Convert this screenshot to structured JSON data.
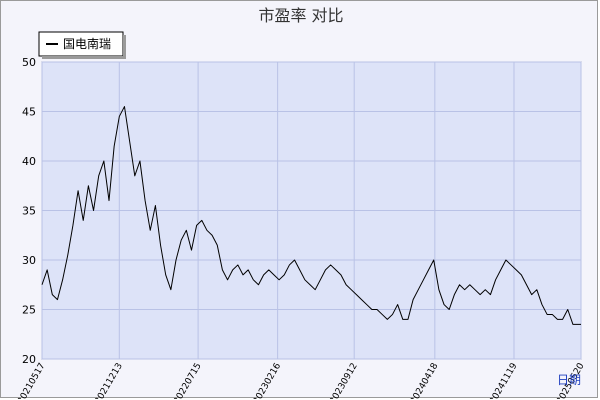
{
  "chart_data": {
    "type": "line",
    "title": "市盈率  对比",
    "xlabel": "日期",
    "ylabel": "",
    "ylim": [
      20,
      50
    ],
    "y_ticks": [
      20,
      25,
      30,
      35,
      40,
      45,
      50
    ],
    "x_range": [
      "2021-05-17",
      "2025-05-20"
    ],
    "x_ticks": [
      {
        "date": "2021-05-17",
        "label": "20210517"
      },
      {
        "date": "2021-12-13",
        "label": "20211213"
      },
      {
        "date": "2022-07-15",
        "label": "20220715"
      },
      {
        "date": "2023-02-16",
        "label": "20230216"
      },
      {
        "date": "2023-09-12",
        "label": "20230912"
      },
      {
        "date": "2024-04-18",
        "label": "20240418"
      },
      {
        "date": "2024-11-19",
        "label": "20241119"
      },
      {
        "date": "2025-05-20",
        "label": "20250520"
      }
    ],
    "grid": true,
    "legend": "top-left",
    "series": [
      {
        "name": "国电南瑞",
        "color": "#000000",
        "points": [
          [
            "2021-05-17",
            27.5
          ],
          [
            "2021-05-31",
            29.0
          ],
          [
            "2021-06-14",
            26.5
          ],
          [
            "2021-06-28",
            26.0
          ],
          [
            "2021-07-12",
            28.0
          ],
          [
            "2021-07-26",
            30.5
          ],
          [
            "2021-08-09",
            33.5
          ],
          [
            "2021-08-23",
            37.0
          ],
          [
            "2021-09-06",
            34.0
          ],
          [
            "2021-09-20",
            37.5
          ],
          [
            "2021-10-04",
            35.0
          ],
          [
            "2021-10-18",
            38.5
          ],
          [
            "2021-11-01",
            40.0
          ],
          [
            "2021-11-15",
            36.0
          ],
          [
            "2021-11-29",
            41.5
          ],
          [
            "2021-12-13",
            44.5
          ],
          [
            "2021-12-27",
            45.5
          ],
          [
            "2022-01-10",
            42.0
          ],
          [
            "2022-01-24",
            38.5
          ],
          [
            "2022-02-07",
            40.0
          ],
          [
            "2022-02-21",
            36.0
          ],
          [
            "2022-03-07",
            33.0
          ],
          [
            "2022-03-21",
            35.5
          ],
          [
            "2022-04-04",
            31.5
          ],
          [
            "2022-04-18",
            28.5
          ],
          [
            "2022-05-02",
            27.0
          ],
          [
            "2022-05-16",
            30.0
          ],
          [
            "2022-05-30",
            32.0
          ],
          [
            "2022-06-13",
            33.0
          ],
          [
            "2022-06-27",
            31.0
          ],
          [
            "2022-07-11",
            33.5
          ],
          [
            "2022-07-25",
            34.0
          ],
          [
            "2022-08-08",
            33.0
          ],
          [
            "2022-08-22",
            32.5
          ],
          [
            "2022-09-05",
            31.5
          ],
          [
            "2022-09-19",
            29.0
          ],
          [
            "2022-10-03",
            28.0
          ],
          [
            "2022-10-17",
            29.0
          ],
          [
            "2022-10-31",
            29.5
          ],
          [
            "2022-11-14",
            28.5
          ],
          [
            "2022-11-28",
            29.0
          ],
          [
            "2022-12-12",
            28.0
          ],
          [
            "2022-12-26",
            27.5
          ],
          [
            "2023-01-09",
            28.5
          ],
          [
            "2023-01-23",
            29.0
          ],
          [
            "2023-02-06",
            28.5
          ],
          [
            "2023-02-20",
            28.0
          ],
          [
            "2023-03-06",
            28.5
          ],
          [
            "2023-03-20",
            29.5
          ],
          [
            "2023-04-03",
            30.0
          ],
          [
            "2023-04-17",
            29.0
          ],
          [
            "2023-05-01",
            28.0
          ],
          [
            "2023-05-15",
            27.5
          ],
          [
            "2023-05-29",
            27.0
          ],
          [
            "2023-06-12",
            28.0
          ],
          [
            "2023-06-26",
            29.0
          ],
          [
            "2023-07-10",
            29.5
          ],
          [
            "2023-07-24",
            29.0
          ],
          [
            "2023-08-07",
            28.5
          ],
          [
            "2023-08-21",
            27.5
          ],
          [
            "2023-09-04",
            27.0
          ],
          [
            "2023-09-18",
            26.5
          ],
          [
            "2023-10-02",
            26.0
          ],
          [
            "2023-10-16",
            25.5
          ],
          [
            "2023-10-30",
            25.0
          ],
          [
            "2023-11-13",
            25.0
          ],
          [
            "2023-11-27",
            24.5
          ],
          [
            "2023-12-11",
            24.0
          ],
          [
            "2023-12-25",
            24.5
          ],
          [
            "2024-01-08",
            25.5
          ],
          [
            "2024-01-22",
            24.0
          ],
          [
            "2024-02-05",
            24.0
          ],
          [
            "2024-02-19",
            26.0
          ],
          [
            "2024-03-04",
            27.0
          ],
          [
            "2024-03-18",
            28.0
          ],
          [
            "2024-04-01",
            29.0
          ],
          [
            "2024-04-15",
            30.0
          ],
          [
            "2024-04-29",
            27.0
          ],
          [
            "2024-05-13",
            25.5
          ],
          [
            "2024-05-27",
            25.0
          ],
          [
            "2024-06-10",
            26.5
          ],
          [
            "2024-06-24",
            27.5
          ],
          [
            "2024-07-08",
            27.0
          ],
          [
            "2024-07-22",
            27.5
          ],
          [
            "2024-08-05",
            27.0
          ],
          [
            "2024-08-19",
            26.5
          ],
          [
            "2024-09-02",
            27.0
          ],
          [
            "2024-09-16",
            26.5
          ],
          [
            "2024-09-30",
            28.0
          ],
          [
            "2024-10-14",
            29.0
          ],
          [
            "2024-10-28",
            30.0
          ],
          [
            "2024-11-11",
            29.5
          ],
          [
            "2024-11-25",
            29.0
          ],
          [
            "2024-12-09",
            28.5
          ],
          [
            "2024-12-23",
            27.5
          ],
          [
            "2025-01-06",
            26.5
          ],
          [
            "2025-01-20",
            27.0
          ],
          [
            "2025-02-03",
            25.5
          ],
          [
            "2025-02-17",
            24.5
          ],
          [
            "2025-03-03",
            24.5
          ],
          [
            "2025-03-17",
            24.0
          ],
          [
            "2025-03-31",
            24.0
          ],
          [
            "2025-04-14",
            25.0
          ],
          [
            "2025-04-28",
            23.5
          ],
          [
            "2025-05-12",
            23.5
          ],
          [
            "2025-05-20",
            23.5
          ]
        ]
      }
    ]
  }
}
